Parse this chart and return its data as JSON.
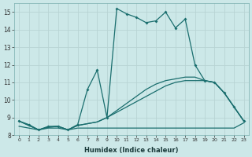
{
  "xlabel": "Humidex (Indice chaleur)",
  "xlim": [
    -0.5,
    23.5
  ],
  "ylim": [
    8,
    15.5
  ],
  "bg_color": "#cce8e8",
  "grid_color": "#b8d4d4",
  "line_color": "#1a6e6e",
  "line1_x": [
    0,
    1,
    2,
    3,
    4,
    5,
    6,
    7,
    8,
    9,
    10,
    11,
    12,
    13,
    14,
    15,
    16,
    17,
    18,
    19,
    20,
    21,
    22,
    23
  ],
  "line1_y": [
    8.8,
    8.6,
    8.3,
    8.5,
    8.5,
    8.3,
    8.6,
    10.6,
    11.7,
    9.0,
    15.2,
    14.9,
    14.7,
    14.4,
    14.5,
    15.0,
    14.1,
    14.6,
    12.0,
    11.1,
    11.0,
    10.4,
    9.6,
    8.8
  ],
  "line2_x": [
    0,
    1,
    2,
    3,
    4,
    5,
    6,
    7,
    8,
    9,
    10,
    11,
    12,
    13,
    14,
    15,
    16,
    17,
    18,
    19,
    20,
    21,
    22,
    23
  ],
  "line2_y": [
    8.8,
    8.55,
    8.3,
    8.45,
    8.5,
    8.3,
    8.55,
    8.65,
    8.75,
    9.0,
    9.3,
    9.6,
    9.9,
    10.2,
    10.5,
    10.8,
    11.0,
    11.1,
    11.1,
    11.1,
    11.0,
    10.4,
    9.6,
    8.8
  ],
  "line3_x": [
    0,
    1,
    2,
    3,
    4,
    5,
    6,
    7,
    8,
    9,
    10,
    11,
    12,
    13,
    14,
    15,
    16,
    17,
    18,
    19,
    20,
    21,
    22,
    23
  ],
  "line3_y": [
    8.8,
    8.55,
    8.3,
    8.45,
    8.5,
    8.3,
    8.55,
    8.65,
    8.75,
    9.0,
    9.4,
    9.8,
    10.2,
    10.6,
    10.9,
    11.1,
    11.2,
    11.3,
    11.3,
    11.1,
    11.0,
    10.4,
    9.6,
    8.8
  ],
  "line4_x": [
    0,
    1,
    2,
    3,
    4,
    5,
    6,
    7,
    8,
    9,
    10,
    11,
    12,
    13,
    14,
    15,
    16,
    17,
    18,
    19,
    20,
    21,
    22,
    23
  ],
  "line4_y": [
    8.5,
    8.4,
    8.3,
    8.4,
    8.4,
    8.3,
    8.4,
    8.4,
    8.4,
    8.4,
    8.4,
    8.4,
    8.4,
    8.4,
    8.4,
    8.4,
    8.4,
    8.4,
    8.4,
    8.4,
    8.4,
    8.4,
    8.4,
    8.7
  ],
  "xticks": [
    0,
    1,
    2,
    3,
    4,
    5,
    6,
    7,
    8,
    9,
    10,
    11,
    12,
    13,
    14,
    15,
    16,
    17,
    18,
    19,
    20,
    21,
    22,
    23
  ],
  "yticks": [
    8,
    9,
    10,
    11,
    12,
    13,
    14,
    15
  ]
}
